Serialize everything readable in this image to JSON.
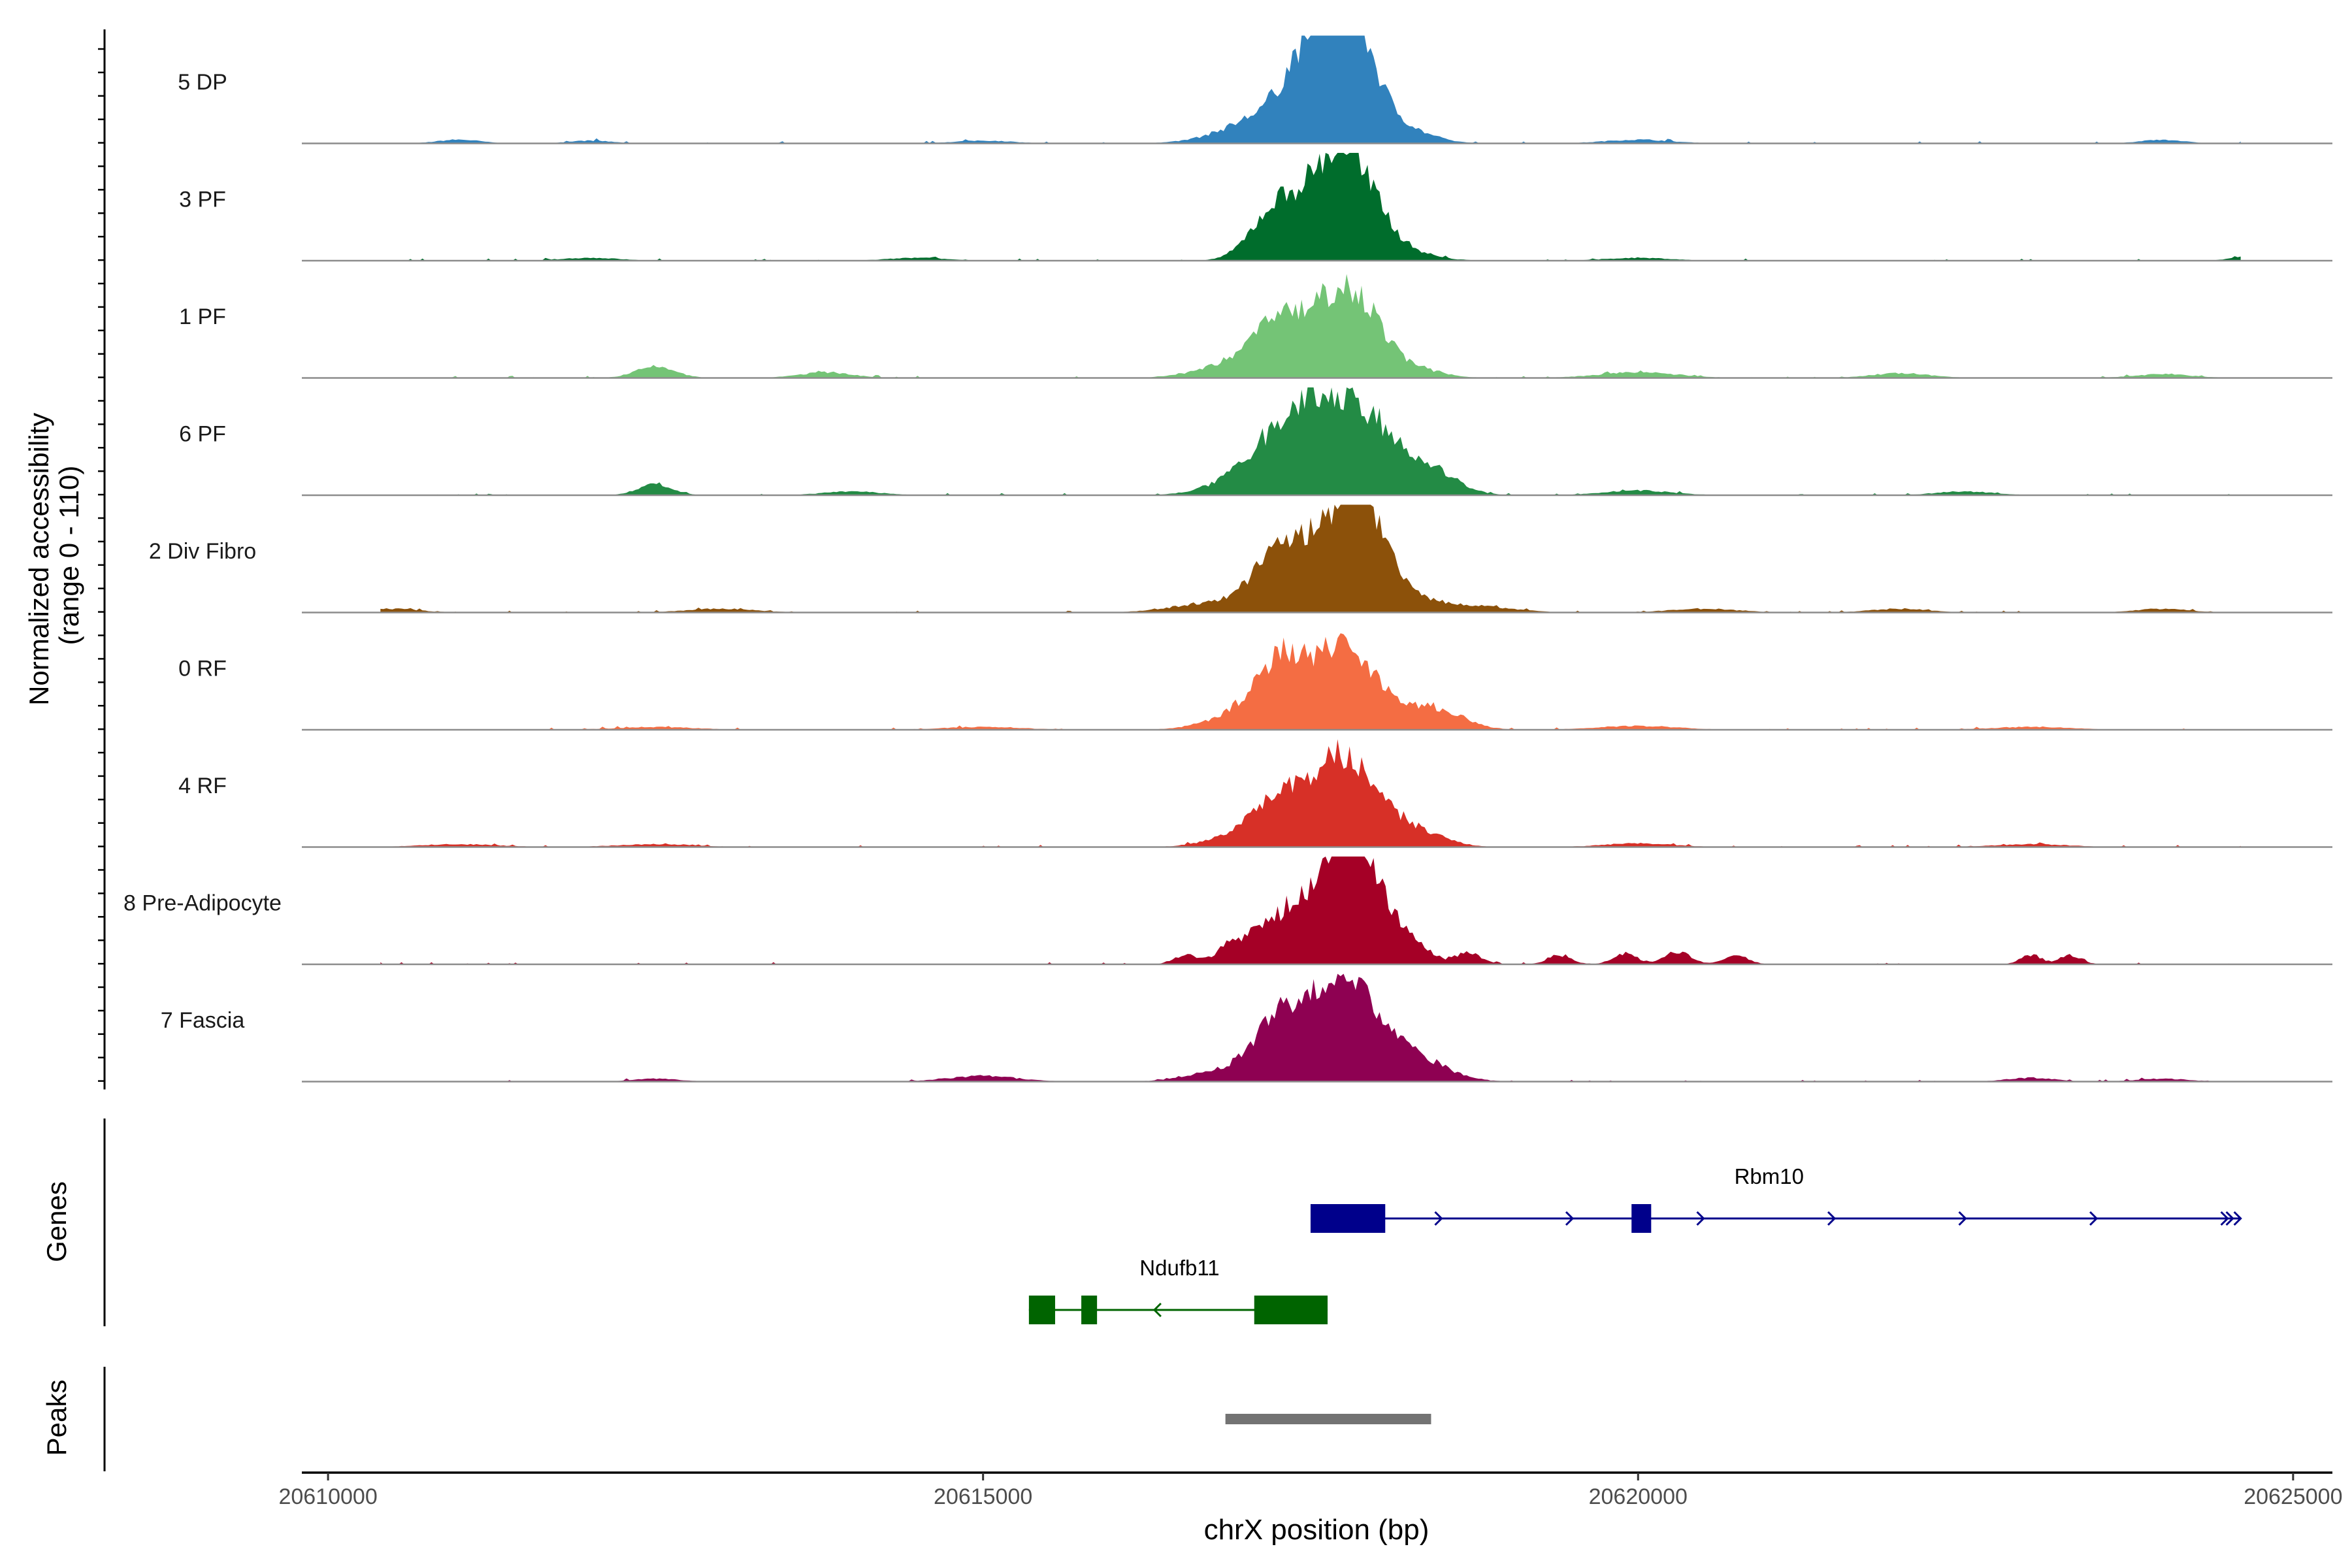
{
  "chart_data": {
    "type": "coverage",
    "title": "",
    "ylabel": "Normalized accessibility\n(range 0 - 110)",
    "ylabel_lines": [
      "Normalized accessibility",
      "(range 0 - 110)"
    ],
    "ylim": [
      0,
      110
    ],
    "xlabel": "chrX position (bp)",
    "xlim": [
      20609800,
      20625300
    ],
    "x_ticks": [
      20610000,
      20615000,
      20620000,
      20625000
    ],
    "x_tick_labels": [
      "20610000",
      "20615000",
      "20620000",
      "20625000"
    ],
    "tracks": [
      {
        "name": "5 DP",
        "color": "#3182bd",
        "peaks": [
          [
            20617200,
            30,
            320
          ],
          [
            20617550,
            92,
            200
          ],
          [
            20617800,
            100,
            170
          ],
          [
            20618050,
            25,
            260
          ],
          [
            20611000,
            4,
            160
          ],
          [
            20612000,
            3,
            160
          ],
          [
            20615000,
            3,
            220
          ],
          [
            20620000,
            4,
            250
          ],
          [
            20624000,
            4,
            160
          ]
        ]
      },
      {
        "name": "3 PF",
        "color": "#006d2c",
        "peaks": [
          [
            20617250,
            58,
            190
          ],
          [
            20617600,
            68,
            170
          ],
          [
            20617850,
            78,
            170
          ],
          [
            20618050,
            18,
            260
          ],
          [
            20612000,
            3,
            220
          ],
          [
            20614500,
            3,
            220
          ],
          [
            20620000,
            3,
            250
          ],
          [
            20624700,
            6,
            140
          ]
        ]
      },
      {
        "name": "1 PF",
        "color": "#74c476",
        "peaks": [
          [
            20616900,
            14,
            260
          ],
          [
            20617250,
            58,
            190
          ],
          [
            20617600,
            52,
            170
          ],
          [
            20617850,
            66,
            170
          ],
          [
            20618100,
            18,
            260
          ],
          [
            20612500,
            12,
            150
          ],
          [
            20613800,
            6,
            200
          ],
          [
            20620000,
            6,
            300
          ],
          [
            20622000,
            5,
            220
          ],
          [
            20624000,
            4,
            220
          ]
        ]
      },
      {
        "name": "6 PF",
        "color": "#238b45",
        "peaks": [
          [
            20617000,
            18,
            260
          ],
          [
            20617250,
            50,
            190
          ],
          [
            20617550,
            75,
            170
          ],
          [
            20617850,
            72,
            190
          ],
          [
            20618150,
            32,
            240
          ],
          [
            20618450,
            16,
            200
          ],
          [
            20612500,
            12,
            130
          ],
          [
            20614000,
            4,
            220
          ],
          [
            20620000,
            5,
            260
          ],
          [
            20622500,
            4,
            220
          ]
        ]
      },
      {
        "name": "2 Div Fibro",
        "color": "#8c510a",
        "peaks": [
          [
            20616750,
            10,
            300
          ],
          [
            20617250,
            60,
            190
          ],
          [
            20617650,
            76,
            200
          ],
          [
            20617900,
            85,
            160
          ],
          [
            20618150,
            22,
            260
          ],
          [
            20610500,
            4,
            200
          ],
          [
            20613000,
            4,
            260
          ],
          [
            20618800,
            6,
            260
          ],
          [
            20620500,
            4,
            260
          ],
          [
            20622000,
            4,
            220
          ],
          [
            20624000,
            4,
            200
          ]
        ]
      },
      {
        "name": "0 RF",
        "color": "#f46d43",
        "peaks": [
          [
            20617000,
            18,
            260
          ],
          [
            20617300,
            70,
            190
          ],
          [
            20617750,
            80,
            200
          ],
          [
            20618100,
            22,
            260
          ],
          [
            20618500,
            16,
            200
          ],
          [
            20612500,
            3,
            300
          ],
          [
            20615000,
            3,
            300
          ],
          [
            20620000,
            4,
            300
          ],
          [
            20623000,
            3,
            300
          ]
        ]
      },
      {
        "name": "4 RF",
        "color": "#d73027",
        "peaks": [
          [
            20617000,
            16,
            240
          ],
          [
            20617300,
            52,
            180
          ],
          [
            20617700,
            78,
            180
          ],
          [
            20617950,
            38,
            200
          ],
          [
            20618300,
            16,
            220
          ],
          [
            20611000,
            3,
            300
          ],
          [
            20612500,
            3,
            300
          ],
          [
            20620000,
            4,
            260
          ],
          [
            20623000,
            3,
            280
          ]
        ]
      },
      {
        "name": "8 Pre-Adipocyte",
        "color": "#a50026",
        "peaks": [
          [
            20616550,
            10,
            90
          ],
          [
            20616850,
            14,
            90
          ],
          [
            20617100,
            34,
            140
          ],
          [
            20617350,
            40,
            120
          ],
          [
            20617700,
            100,
            190
          ],
          [
            20617950,
            70,
            200
          ],
          [
            20618300,
            14,
            120
          ],
          [
            20618700,
            12,
            100
          ],
          [
            20619400,
            10,
            90
          ],
          [
            20619900,
            12,
            90
          ],
          [
            20620300,
            14,
            100
          ],
          [
            20620750,
            10,
            90
          ],
          [
            20623000,
            10,
            80
          ],
          [
            20623300,
            10,
            80
          ]
        ]
      },
      {
        "name": "7 Fascia",
        "color": "#8e0152",
        "peaks": [
          [
            20616750,
            10,
            220
          ],
          [
            20617100,
            22,
            160
          ],
          [
            20617350,
            68,
            180
          ],
          [
            20617700,
            88,
            180
          ],
          [
            20617950,
            48,
            200
          ],
          [
            20618300,
            24,
            240
          ],
          [
            20612500,
            3,
            180
          ],
          [
            20615000,
            6,
            260
          ],
          [
            20623000,
            4,
            180
          ],
          [
            20624000,
            3,
            200
          ]
        ]
      }
    ],
    "genes": [
      {
        "name": "Rbm10",
        "strand": "+",
        "color": "#00008b",
        "start": 20617500,
        "end": 20624600,
        "exons": [
          [
            20617500,
            20618070
          ],
          [
            20619950,
            20620100
          ]
        ]
      },
      {
        "name": "Ndufb11",
        "strand": "-",
        "color": "#006400",
        "start": 20615350,
        "end": 20617630,
        "exons": [
          [
            20615350,
            20615550
          ],
          [
            20615750,
            20615870
          ],
          [
            20617070,
            20617630
          ]
        ]
      }
    ],
    "peaks_track": {
      "color": "#737373",
      "regions": [
        [
          20616850,
          20618420
        ]
      ]
    },
    "panel_labels": [
      "Genes",
      "Peaks"
    ]
  }
}
